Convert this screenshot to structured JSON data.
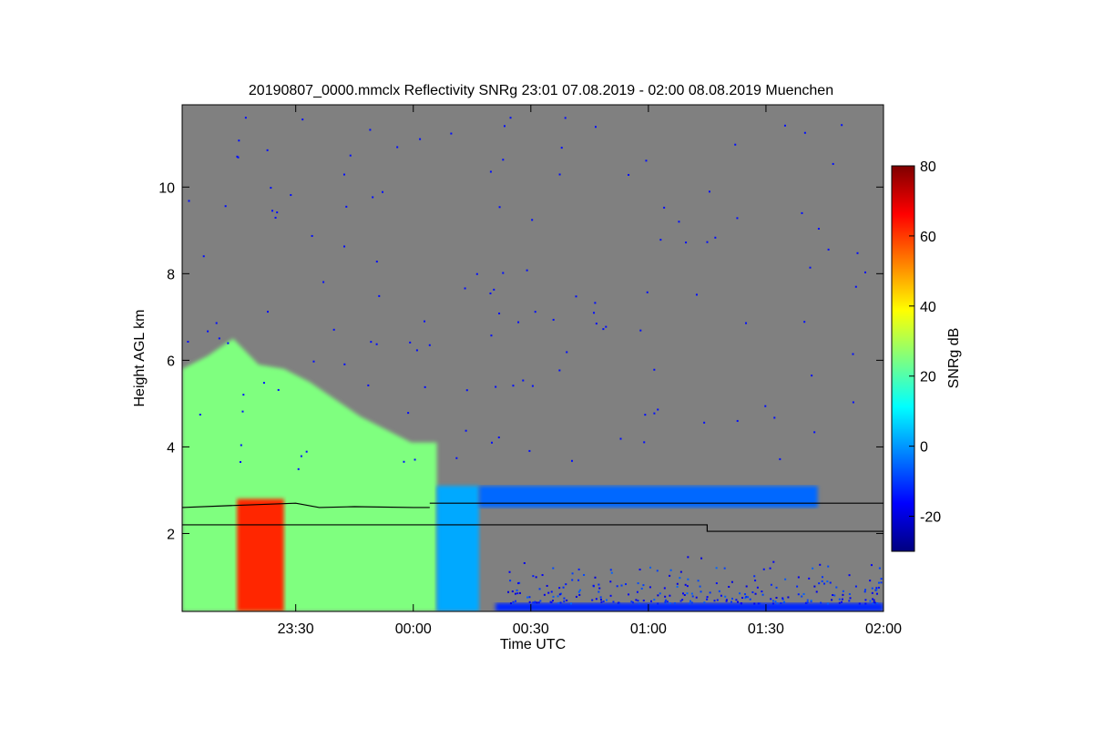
{
  "chart_data": {
    "type": "heatmap",
    "title": "20190807_0000.mmclx Reflectivity SNRg   23:01 07.08.2019 - 02:00 08.08.2019 Muenchen",
    "xlabel": "Time UTC",
    "ylabel": "Height AGL km",
    "colorbar_label": "SNRg dB",
    "background_color": "#808080",
    "x_range_hours": [
      -0.983,
      2.0
    ],
    "y_range_km": [
      0.2,
      11.9
    ],
    "x_ticks": [
      {
        "value": -0.5,
        "label": "23:30"
      },
      {
        "value": 0.0,
        "label": "00:00"
      },
      {
        "value": 0.5,
        "label": "00:30"
      },
      {
        "value": 1.0,
        "label": "01:00"
      },
      {
        "value": 1.5,
        "label": "01:30"
      },
      {
        "value": 2.0,
        "label": "02:00"
      }
    ],
    "y_ticks": [
      {
        "value": 2,
        "label": "2"
      },
      {
        "value": 4,
        "label": "4"
      },
      {
        "value": 6,
        "label": "6"
      },
      {
        "value": 8,
        "label": "8"
      },
      {
        "value": 10,
        "label": "10"
      }
    ],
    "colorbar": {
      "range": [
        -30,
        80
      ],
      "ticks": [
        {
          "value": -20,
          "label": "-20"
        },
        {
          "value": 0,
          "label": "0"
        },
        {
          "value": 20,
          "label": "20"
        },
        {
          "value": 40,
          "label": "40"
        },
        {
          "value": 60,
          "label": "60"
        },
        {
          "value": 80,
          "label": "80"
        }
      ],
      "colormap": "jet",
      "colors": [
        "#00007f",
        "#0000ff",
        "#007fff",
        "#00ffff",
        "#7fff7f",
        "#ffff00",
        "#ff7f00",
        "#ff0000",
        "#7f0000"
      ]
    },
    "echo_regions": [
      {
        "name": "precipitation",
        "x_hours": [
          -0.983,
          0.1
        ],
        "top_km": [
          5.8,
          6.1,
          6.5,
          5.9,
          5.8,
          5.5,
          5.1,
          4.7,
          4.4,
          4.1,
          4.1
        ],
        "snr_db": 25
      },
      {
        "name": "core",
        "x_hours": [
          -0.75,
          -0.55
        ],
        "top_km": 2.8,
        "snr_db": 62
      },
      {
        "name": "fall-streak",
        "x_hours": [
          0.1,
          0.28
        ],
        "top_km": 3.1,
        "snr_db": 2
      },
      {
        "name": "cloud-layer",
        "x_hours": [
          0.28,
          1.72
        ],
        "base_km": 2.6,
        "top_km": 3.1,
        "snr_db": -5
      },
      {
        "name": "near-surface-band",
        "x_hours": [
          0.35,
          2.0
        ],
        "top_km": 0.4,
        "snr_db": -12
      }
    ],
    "lines": [
      {
        "x_hours": [
          -0.983,
          -0.75,
          -0.5,
          -0.4,
          -0.25,
          0.0,
          0.07
        ],
        "y_km": [
          2.6,
          2.65,
          2.7,
          2.6,
          2.62,
          2.6,
          2.6
        ]
      },
      {
        "x_hours": [
          0.07,
          2.0
        ],
        "y_km": [
          2.7,
          2.7
        ]
      },
      {
        "x_hours": [
          -0.983,
          0.07,
          0.07,
          1.25,
          1.25,
          2.0
        ],
        "y_km": [
          2.2,
          2.2,
          2.2,
          2.2,
          2.05,
          2.05
        ]
      }
    ]
  }
}
